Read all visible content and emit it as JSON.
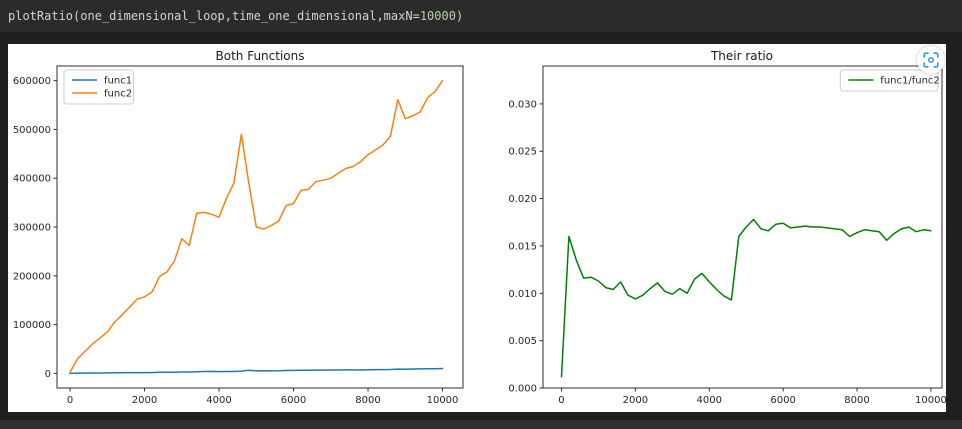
{
  "code_cell": {
    "code_prefix": "plotRatio(one_dimensional_loop,time_one_dimensional,maxN=",
    "code_number": "10000",
    "code_suffix": ")"
  },
  "output_toolbar": {
    "expand_icon": "expand-output-icon",
    "expand_icon_color": "#3794ff"
  },
  "chart_data": [
    {
      "type": "line",
      "title": "Both Functions",
      "legend_position": "upper left",
      "grid": false,
      "x": [
        0,
        200,
        400,
        600,
        800,
        1000,
        1200,
        1400,
        1600,
        1800,
        2000,
        2200,
        2400,
        2600,
        2800,
        3000,
        3200,
        3400,
        3600,
        3800,
        4000,
        4200,
        4400,
        4600,
        4800,
        5000,
        5200,
        5400,
        5600,
        5800,
        6000,
        6200,
        6400,
        6600,
        6800,
        7000,
        7200,
        7400,
        7600,
        7800,
        8000,
        8200,
        8400,
        8600,
        8800,
        9000,
        9200,
        9400,
        9600,
        9800,
        10000
      ],
      "series": [
        {
          "name": "func1",
          "color": "#1f77b4",
          "values": [
            2,
            480,
            608,
            696,
            842,
            961,
            1113,
            1248,
            1523,
            1490,
            1476,
            1637,
            2079,
            2309,
            2346,
            2732,
            2751,
            3280,
            3795,
            3945,
            3584,
            3734,
            3783,
            4557,
            6240,
            5100,
            5269,
            5090,
            5179,
            5951,
            6055,
            6338,
            6409,
            6720,
            6732,
            6800,
            6929,
            7056,
            7081,
            6944,
            7347,
            7649,
            7769,
            8019,
            8752,
            8509,
            8870,
            9112,
            9323,
            9653,
            9960
          ]
        },
        {
          "name": "func2",
          "color": "#ff7f0e",
          "values": [
            2000,
            30000,
            45000,
            60000,
            72000,
            85000,
            105000,
            120000,
            136000,
            152000,
            157000,
            167000,
            198000,
            208000,
            230000,
            276000,
            262000,
            328000,
            330000,
            326000,
            320000,
            359000,
            390000,
            490000,
            390000,
            300000,
            296000,
            303000,
            312000,
            344000,
            348000,
            375000,
            377000,
            393000,
            396000,
            400000,
            410000,
            420000,
            424000,
            434000,
            448000,
            458000,
            468000,
            486000,
            561000,
            522000,
            528000,
            536000,
            565000,
            578000,
            600000
          ]
        }
      ],
      "xlim": [
        -350,
        10550
      ],
      "ylim": [
        -30000,
        630000
      ],
      "xticks": [
        0,
        2000,
        4000,
        6000,
        8000,
        10000
      ],
      "xtick_labels": [
        "0",
        "2000",
        "4000",
        "6000",
        "8000",
        "10000"
      ],
      "yticks": [
        0,
        100000,
        200000,
        300000,
        400000,
        500000,
        600000
      ],
      "ytick_labels": [
        "0",
        "100000",
        "200000",
        "300000",
        "400000",
        "500000",
        "600000"
      ]
    },
    {
      "type": "line",
      "title": "Their ratio",
      "legend_position": "upper right",
      "grid": false,
      "x": [
        0,
        200,
        400,
        600,
        800,
        1000,
        1200,
        1400,
        1600,
        1800,
        2000,
        2200,
        2400,
        2600,
        2800,
        3000,
        3200,
        3400,
        3600,
        3800,
        4000,
        4200,
        4400,
        4600,
        4800,
        5000,
        5200,
        5400,
        5600,
        5800,
        6000,
        6200,
        6400,
        6600,
        6800,
        7000,
        7200,
        7400,
        7600,
        7800,
        8000,
        8200,
        8400,
        8600,
        8800,
        9000,
        9200,
        9400,
        9600,
        9800,
        10000
      ],
      "series": [
        {
          "name": "func1/func2",
          "color": "#008000",
          "values": [
            0.0012,
            0.016,
            0.0135,
            0.0116,
            0.0117,
            0.0113,
            0.0106,
            0.0104,
            0.0112,
            0.0098,
            0.0094,
            0.0098,
            0.0105,
            0.0111,
            0.0102,
            0.0099,
            0.0105,
            0.01,
            0.0115,
            0.0121,
            0.0112,
            0.0104,
            0.0097,
            0.0093,
            0.016,
            0.017,
            0.0178,
            0.0168,
            0.0166,
            0.0173,
            0.0174,
            0.0169,
            0.017,
            0.0171,
            0.017,
            0.017,
            0.0169,
            0.0168,
            0.0167,
            0.016,
            0.0164,
            0.0167,
            0.0166,
            0.0165,
            0.0156,
            0.0163,
            0.0168,
            0.017,
            0.0165,
            0.0167,
            0.0166
          ]
        }
      ],
      "xlim": [
        -500,
        10300
      ],
      "ylim": [
        0,
        0.034
      ],
      "xticks": [
        0,
        2000,
        4000,
        6000,
        8000,
        10000
      ],
      "xtick_labels": [
        "0",
        "2000",
        "4000",
        "6000",
        "8000",
        "10000"
      ],
      "yticks": [
        0,
        0.005,
        0.01,
        0.015,
        0.02,
        0.025,
        0.03
      ],
      "ytick_labels": [
        "0.000",
        "0.005",
        "0.010",
        "0.015",
        "0.020",
        "0.025",
        "0.030"
      ]
    }
  ]
}
